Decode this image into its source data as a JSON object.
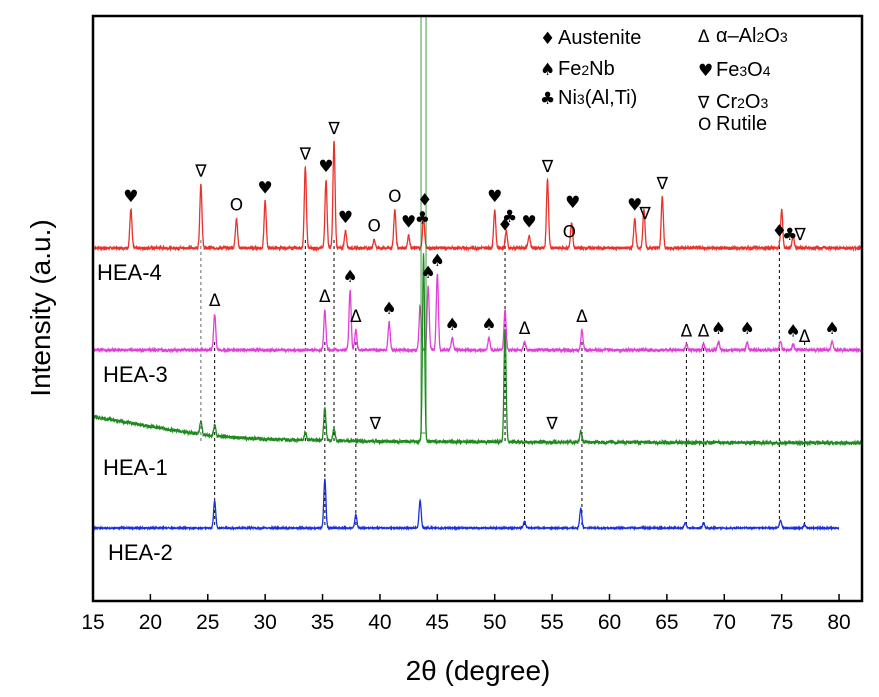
{
  "chart_data": {
    "type": "line",
    "xlabel": "2θ (degree)",
    "ylabel": "Intensity (a.u.)",
    "xlim": [
      15,
      82
    ],
    "xticks": [
      15,
      20,
      25,
      30,
      35,
      40,
      45,
      50,
      55,
      60,
      65,
      70,
      75,
      80
    ],
    "grid": false,
    "legend_placement": "top-right",
    "series": [
      {
        "name": "HEA-4",
        "color": "#e8322b",
        "baseline": 0.0,
        "noise": 0.35,
        "peaks": [
          [
            18.3,
            4.5
          ],
          [
            24.4,
            7.5
          ],
          [
            27.5,
            3.5
          ],
          [
            30.0,
            5.5
          ],
          [
            33.5,
            9.5
          ],
          [
            35.3,
            8.0
          ],
          [
            36.0,
            12.5
          ],
          [
            37.0,
            2.0
          ],
          [
            39.5,
            1.0
          ],
          [
            41.3,
            4.5
          ],
          [
            42.5,
            1.5
          ],
          [
            43.8,
            3.5
          ],
          [
            50.0,
            4.5
          ],
          [
            51.0,
            2.0
          ],
          [
            53.0,
            1.5
          ],
          [
            54.6,
            8.0
          ],
          [
            56.7,
            3.0
          ],
          [
            62.2,
            3.5
          ],
          [
            63.0,
            4.5
          ],
          [
            64.6,
            6.0
          ],
          [
            75.0,
            4.5
          ],
          [
            76.0,
            1.5
          ]
        ]
      },
      {
        "name": "HEA-3",
        "color": "#e040d8",
        "baseline": 0.0,
        "noise": 0.35,
        "peaks": [
          [
            25.6,
            4.5
          ],
          [
            35.2,
            5.0
          ],
          [
            37.4,
            7.5
          ],
          [
            37.9,
            2.5
          ],
          [
            40.8,
            3.5
          ],
          [
            43.5,
            5.5
          ],
          [
            44.2,
            8.0
          ],
          [
            45.0,
            9.5
          ],
          [
            46.3,
            1.5
          ],
          [
            49.5,
            1.5
          ],
          [
            50.9,
            5.0
          ],
          [
            52.6,
            1.0
          ],
          [
            57.6,
            2.5
          ],
          [
            66.7,
            0.7
          ],
          [
            68.2,
            0.7
          ],
          [
            69.5,
            1.0
          ],
          [
            72.0,
            1.0
          ],
          [
            74.9,
            1.0
          ],
          [
            76.0,
            0.7
          ],
          [
            79.4,
            1.0
          ]
        ]
      },
      {
        "name": "HEA-1",
        "color": "#1f8a1f",
        "baseline": 0.0,
        "noise": 0.45,
        "background": [
          [
            15,
            3.5
          ],
          [
            20,
            2.2
          ],
          [
            25,
            1.0
          ],
          [
            30,
            0.5
          ],
          [
            40,
            0.2
          ],
          [
            82,
            0.0
          ]
        ],
        "peaks": [
          [
            24.4,
            1.8
          ],
          [
            25.6,
            1.5
          ],
          [
            33.5,
            1.0
          ],
          [
            35.2,
            4.5
          ],
          [
            36.0,
            1.5
          ],
          [
            43.8,
            25.0
          ],
          [
            50.9,
            15.0
          ],
          [
            57.5,
            1.5
          ]
        ]
      },
      {
        "name": "HEA-2",
        "color": "#1a2fe0",
        "baseline": 0.0,
        "noise": 0.2,
        "x_end": 80,
        "peaks": [
          [
            25.6,
            4.2
          ],
          [
            35.2,
            7.5
          ],
          [
            37.9,
            2.0
          ],
          [
            43.5,
            4.2
          ],
          [
            52.6,
            1.0
          ],
          [
            57.5,
            3.0
          ],
          [
            66.6,
            0.8
          ],
          [
            68.2,
            0.8
          ],
          [
            74.9,
            1.2
          ],
          [
            77.0,
            0.5
          ]
        ]
      }
    ],
    "legend": [
      {
        "symbol": "♦",
        "label": "Austenite"
      },
      {
        "symbol": "Δ",
        "label": "α–Al",
        "sub1": "2",
        "mid": "O",
        "sub2": "3"
      },
      {
        "symbol": "♠",
        "label": "Fe",
        "sub1": "2",
        "mid": "Nb"
      },
      {
        "symbol": "♥",
        "label": "Fe",
        "sub1": "3",
        "mid": "O",
        "sub2": "4"
      },
      {
        "symbol": "♣",
        "label": "Ni",
        "sub1": "3",
        "mid": "(Al,Ti)"
      },
      {
        "symbol": "∇",
        "label": "Cr",
        "sub1": "2",
        "mid": "O",
        "sub2": "3"
      },
      {
        "symbol": "O",
        "label": "Rutile"
      }
    ],
    "markers": [
      {
        "trace": "HEA-4",
        "x": 18.3,
        "symbol": "♥"
      },
      {
        "trace": "HEA-4",
        "x": 24.4,
        "symbol": "∇"
      },
      {
        "trace": "HEA-4",
        "x": 27.5,
        "symbol": "O"
      },
      {
        "trace": "HEA-4",
        "x": 30.0,
        "symbol": "♥"
      },
      {
        "trace": "HEA-4",
        "x": 33.5,
        "symbol": "∇"
      },
      {
        "trace": "HEA-4",
        "x": 35.3,
        "symbol": "♥"
      },
      {
        "trace": "HEA-4",
        "x": 36.0,
        "symbol": "∇"
      },
      {
        "trace": "HEA-4",
        "x": 37.0,
        "symbol": "♥"
      },
      {
        "trace": "HEA-4",
        "x": 39.5,
        "symbol": "O"
      },
      {
        "trace": "HEA-4",
        "x": 41.3,
        "symbol": "O"
      },
      {
        "trace": "HEA-4",
        "x": 42.5,
        "symbol": "♥"
      },
      {
        "trace": "HEA-4",
        "x": 43.7,
        "symbol": "♣"
      },
      {
        "trace": "HEA-4",
        "x": 43.9,
        "symbol": "♦"
      },
      {
        "trace": "HEA-4",
        "x": 50.0,
        "symbol": "♥"
      },
      {
        "trace": "HEA-4",
        "x": 50.9,
        "symbol": "♦"
      },
      {
        "trace": "HEA-4",
        "x": 51.3,
        "symbol": "♣"
      },
      {
        "trace": "HEA-4",
        "x": 53.0,
        "symbol": "♥"
      },
      {
        "trace": "HEA-4",
        "x": 54.6,
        "symbol": "∇"
      },
      {
        "trace": "HEA-4",
        "x": 56.5,
        "symbol": "O"
      },
      {
        "trace": "HEA-4",
        "x": 56.8,
        "symbol": "♥"
      },
      {
        "trace": "HEA-4",
        "x": 62.2,
        "symbol": "♥"
      },
      {
        "trace": "HEA-4",
        "x": 63.1,
        "symbol": "∇"
      },
      {
        "trace": "HEA-4",
        "x": 64.6,
        "symbol": "∇"
      },
      {
        "trace": "HEA-4",
        "x": 74.8,
        "symbol": "♦"
      },
      {
        "trace": "HEA-4",
        "x": 75.7,
        "symbol": "♣"
      },
      {
        "trace": "HEA-4",
        "x": 76.6,
        "symbol": "∇"
      },
      {
        "trace": "HEA-3",
        "x": 25.6,
        "symbol": "Δ"
      },
      {
        "trace": "HEA-3",
        "x": 35.2,
        "symbol": "Δ"
      },
      {
        "trace": "HEA-3",
        "x": 37.4,
        "symbol": "♠"
      },
      {
        "trace": "HEA-3",
        "x": 37.9,
        "symbol": "Δ"
      },
      {
        "trace": "HEA-3",
        "x": 40.8,
        "symbol": "♠"
      },
      {
        "trace": "HEA-3",
        "x": 44.2,
        "symbol": "♠"
      },
      {
        "trace": "HEA-3",
        "x": 45.0,
        "symbol": "♠"
      },
      {
        "trace": "HEA-3",
        "x": 46.3,
        "symbol": "♠"
      },
      {
        "trace": "HEA-3",
        "x": 49.5,
        "symbol": "♠"
      },
      {
        "trace": "HEA-3",
        "x": 52.6,
        "symbol": "Δ"
      },
      {
        "trace": "HEA-3",
        "x": 57.6,
        "symbol": "Δ"
      },
      {
        "trace": "HEA-3",
        "x": 66.7,
        "symbol": "Δ"
      },
      {
        "trace": "HEA-3",
        "x": 68.2,
        "symbol": "Δ"
      },
      {
        "trace": "HEA-3",
        "x": 69.5,
        "symbol": "♠"
      },
      {
        "trace": "HEA-3",
        "x": 72.0,
        "symbol": "♠"
      },
      {
        "trace": "HEA-3",
        "x": 76.0,
        "symbol": "♠"
      },
      {
        "trace": "HEA-3",
        "x": 77.0,
        "symbol": "Δ"
      },
      {
        "trace": "HEA-3",
        "x": 79.4,
        "symbol": "♠"
      },
      {
        "trace": "HEA-1",
        "x": 39.6,
        "symbol": "∇"
      },
      {
        "trace": "HEA-1",
        "x": 55.0,
        "symbol": "∇"
      }
    ],
    "dashed_lines": [
      {
        "x": 24.4,
        "from": "HEA-4",
        "to": "HEA-1",
        "color": "#666666"
      },
      {
        "x": 25.6,
        "from": "HEA-3",
        "to": "HEA-2",
        "color": "#000000"
      },
      {
        "x": 33.5,
        "from": "HEA-4",
        "to": "HEA-1",
        "color": "#000000"
      },
      {
        "x": 35.2,
        "from": "HEA-3",
        "to": "HEA-2",
        "color": "#000000"
      },
      {
        "x": 36.0,
        "from": "HEA-4",
        "to": "HEA-1",
        "color": "#000000"
      },
      {
        "x": 37.9,
        "from": "HEA-3",
        "to": "HEA-2",
        "color": "#000000"
      },
      {
        "x": 50.9,
        "from": "HEA-4",
        "to": "HEA-1",
        "color": "#000000"
      },
      {
        "x": 52.6,
        "from": "HEA-3",
        "to": "HEA-2",
        "color": "#000000"
      },
      {
        "x": 57.6,
        "from": "HEA-3",
        "to": "HEA-2",
        "color": "#000000"
      },
      {
        "x": 66.7,
        "from": "HEA-3",
        "to": "HEA-2",
        "color": "#000000"
      },
      {
        "x": 68.2,
        "from": "HEA-3",
        "to": "HEA-2",
        "color": "#000000"
      },
      {
        "x": 74.8,
        "from": "HEA-4",
        "to": "HEA-2",
        "color": "#000000"
      },
      {
        "x": 77.0,
        "from": "HEA-3",
        "to": "HEA-2",
        "color": "#000000"
      }
    ]
  }
}
